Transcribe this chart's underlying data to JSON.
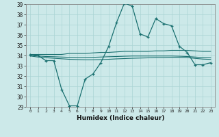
{
  "xlabel": "Humidex (Indice chaleur)",
  "ylabel": "",
  "background_color": "#cce9e9",
  "grid_color": "#aad4d4",
  "line_color": "#1a7070",
  "x_values": [
    0,
    1,
    2,
    3,
    4,
    5,
    6,
    7,
    8,
    9,
    10,
    11,
    12,
    13,
    14,
    15,
    16,
    17,
    18,
    19,
    20,
    21,
    22,
    23
  ],
  "main_line": [
    34.1,
    34.0,
    33.5,
    33.5,
    30.7,
    29.1,
    29.1,
    31.7,
    32.2,
    33.3,
    34.9,
    37.2,
    39.1,
    38.8,
    36.1,
    35.8,
    37.6,
    37.1,
    36.9,
    34.9,
    34.3,
    33.1,
    33.1,
    33.3
  ],
  "trend_line1": [
    34.1,
    34.1,
    34.1,
    34.1,
    34.1,
    34.2,
    34.2,
    34.2,
    34.25,
    34.3,
    34.3,
    34.35,
    34.4,
    34.4,
    34.4,
    34.4,
    34.45,
    34.45,
    34.5,
    34.5,
    34.5,
    34.45,
    34.4,
    34.4
  ],
  "trend_line2": [
    34.0,
    33.95,
    33.9,
    33.88,
    33.85,
    33.82,
    33.8,
    33.8,
    33.82,
    33.85,
    33.88,
    33.9,
    33.93,
    33.95,
    33.95,
    33.95,
    33.95,
    33.95,
    33.95,
    33.93,
    33.9,
    33.85,
    33.8,
    33.78
  ],
  "trend_line3": [
    33.95,
    33.85,
    33.78,
    33.73,
    33.68,
    33.63,
    33.6,
    33.58,
    33.58,
    33.6,
    33.63,
    33.67,
    33.7,
    33.73,
    33.75,
    33.77,
    33.8,
    33.8,
    33.82,
    33.82,
    33.8,
    33.72,
    33.65,
    33.62
  ],
  "ylim": [
    29,
    39
  ],
  "yticks": [
    29,
    30,
    31,
    32,
    33,
    34,
    35,
    36,
    37,
    38,
    39
  ],
  "xticks": [
    0,
    1,
    2,
    3,
    4,
    5,
    6,
    7,
    8,
    9,
    10,
    11,
    12,
    13,
    14,
    15,
    16,
    17,
    18,
    19,
    20,
    21,
    22,
    23
  ],
  "xticklabels": [
    "0",
    "1",
    "2",
    "3",
    "4",
    "5",
    "6",
    "7",
    "8",
    "9",
    "10",
    "11",
    "12",
    "13",
    "14",
    "15",
    "16",
    "17",
    "18",
    "19",
    "20",
    "21",
    "22",
    "23"
  ]
}
